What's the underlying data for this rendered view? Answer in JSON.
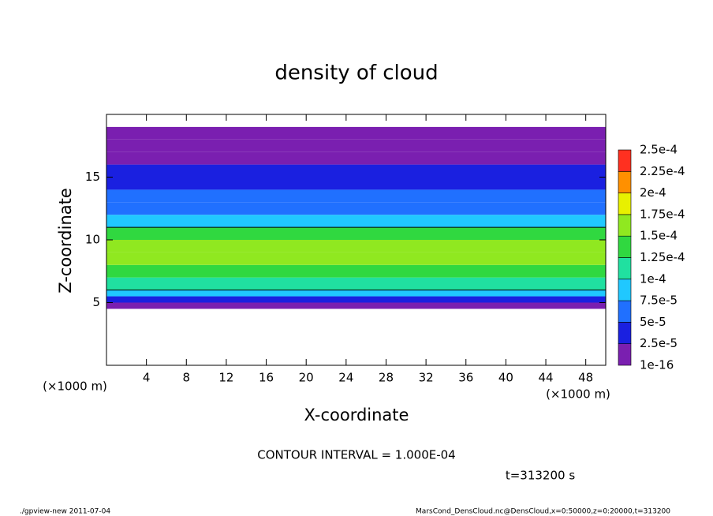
{
  "chart_data": {
    "type": "contour",
    "title": "density of cloud",
    "xlabel": "X-coordinate",
    "ylabel": "Z-coordinate",
    "x_unit": "(×1000 m)",
    "xlim": [
      0,
      50
    ],
    "xticks": [
      4,
      8,
      12,
      16,
      20,
      24,
      28,
      32,
      36,
      40,
      44,
      48
    ],
    "ylim": [
      0,
      20
    ],
    "yticks": [
      5,
      10,
      15
    ],
    "z_bins": [
      0,
      4.5,
      5,
      5.5,
      6,
      7,
      8,
      9,
      10,
      11,
      12,
      13,
      14,
      15,
      16,
      17,
      18,
      19,
      20
    ],
    "values": [
      null,
      1e-05,
      4e-05,
      8e-05,
      0.00011,
      0.00014,
      0.00016,
      0.00016,
      0.00013,
      9e-05,
      7e-05,
      5.5e-05,
      4e-05,
      3e-05,
      2e-05,
      1e-05,
      5e-06,
      null
    ],
    "contour_level": 0.0001,
    "colorbar_ticks": [
      {
        "value": 1e-16,
        "label": "1e-16"
      },
      {
        "value": 2.5e-05,
        "label": "2.5e-5"
      },
      {
        "value": 5e-05,
        "label": "5e-5"
      },
      {
        "value": 7.5e-05,
        "label": "7.5e-5"
      },
      {
        "value": 0.0001,
        "label": "1e-4"
      },
      {
        "value": 0.000125,
        "label": "1.25e-4"
      },
      {
        "value": 0.00015,
        "label": "1.5e-4"
      },
      {
        "value": 0.000175,
        "label": "1.75e-4"
      },
      {
        "value": 0.0002,
        "label": "2e-4"
      },
      {
        "value": 0.000225,
        "label": "2.25e-4"
      },
      {
        "value": 0.00025,
        "label": "2.5e-4"
      }
    ],
    "colorbar_colors": [
      "#7a1fb0",
      "#1a20e0",
      "#2070ff",
      "#20c8ff",
      "#20e0a0",
      "#30d840",
      "#90e820",
      "#e8f000",
      "#ff9000",
      "#ff3020"
    ],
    "contour_interval": "CONTOUR INTERVAL = 1.000E-04",
    "time": "t=313200 s",
    "footer_left": "./gpview-new  2011-07-04",
    "footer_right": "MarsCond_DensCloud.nc@DensCloud,x=0:50000,z=0:20000,t=313200"
  }
}
